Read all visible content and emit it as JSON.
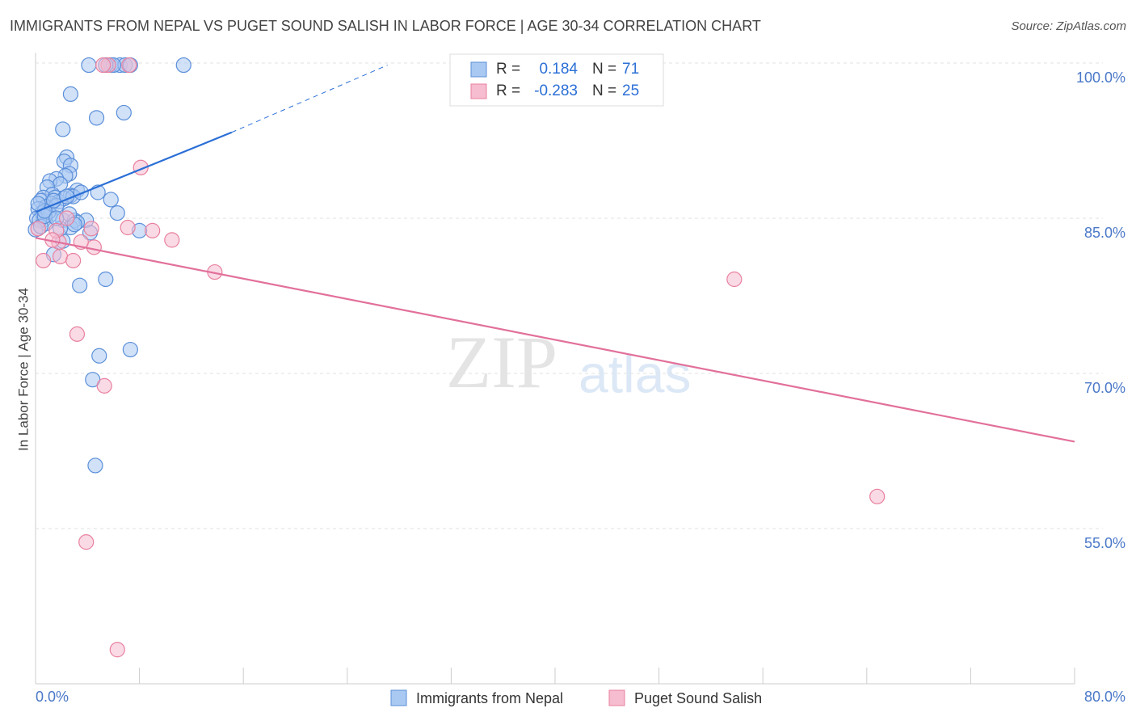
{
  "chart_data": {
    "type": "scatter",
    "title": "IMMIGRANTS FROM NEPAL VS PUGET SOUND SALISH IN LABOR FORCE | AGE 30-34 CORRELATION CHART",
    "source": "Source: ZipAtlas.com",
    "y_label": "In Labor Force | Age 30-34",
    "watermark": [
      "ZIP",
      "atlas"
    ],
    "r_label": "R =",
    "n_label": "N =",
    "xlim": [
      0,
      80
    ],
    "ylim": [
      40,
      101
    ],
    "xticks": [
      {
        "value": 0,
        "label": "0.0%"
      },
      {
        "value": 8,
        "label": null
      },
      {
        "value": 16,
        "label": null
      },
      {
        "value": 24,
        "label": null
      },
      {
        "value": 32,
        "label": null
      },
      {
        "value": 40,
        "label": null
      },
      {
        "value": 48,
        "label": null
      },
      {
        "value": 56,
        "label": null
      },
      {
        "value": 64,
        "label": null
      },
      {
        "value": 72,
        "label": null
      },
      {
        "value": 80,
        "label": "80.0%"
      }
    ],
    "yticks": [
      {
        "value": 55,
        "label": "55.0%"
      },
      {
        "value": 70,
        "label": "70.0%"
      },
      {
        "value": 85,
        "label": "85.0%"
      },
      {
        "value": 100,
        "label": "100.0%"
      }
    ],
    "grid": true,
    "series": [
      {
        "name": "Immigrants from Nepal",
        "color": "#5b8fd9",
        "fill": "#a9c9f2",
        "line_color": "#2b6fd6",
        "r": 0.184,
        "n": 71,
        "x": [
          4.1,
          5.8,
          6.5,
          6.9,
          7.3,
          11.4,
          2.7,
          4.7,
          6.8,
          2.1,
          2.4,
          2.2,
          2.7,
          2.6,
          2.3,
          1.6,
          1.1,
          1.9,
          0.9,
          1.3,
          3.2,
          2.7,
          4.8,
          5.8,
          0.6,
          0.4,
          1.5,
          1.8,
          2.2,
          2.9,
          1.2,
          0.8,
          0.2,
          0.5,
          1.1,
          0.1,
          0.6,
          0.8,
          0.3,
          2.1,
          3.0,
          3.9,
          2.7,
          6.3,
          8.0,
          4.2,
          2.1,
          1.4,
          3.4,
          5.4,
          4.9,
          7.3,
          4.4,
          4.6,
          1.0,
          1.6,
          0.0,
          0.4,
          1.9,
          3.2,
          0.7,
          1.4,
          2.4,
          3.5,
          6.0,
          5.4,
          2.6,
          3.0,
          0.7,
          0.2,
          1.6
        ],
        "values": [
          99.8,
          99.8,
          99.8,
          99.8,
          99.8,
          99.8,
          97.0,
          94.7,
          95.2,
          93.6,
          90.9,
          90.5,
          90.1,
          89.3,
          89.1,
          88.8,
          88.6,
          88.3,
          88.0,
          87.3,
          87.7,
          87.2,
          87.5,
          86.8,
          87.0,
          86.7,
          87.0,
          86.6,
          86.9,
          87.1,
          86.4,
          86.1,
          85.9,
          85.5,
          85.3,
          85.0,
          84.8,
          84.5,
          84.8,
          84.8,
          84.8,
          84.8,
          84.1,
          85.5,
          83.8,
          83.6,
          82.8,
          81.5,
          78.5,
          79.1,
          71.7,
          72.3,
          69.4,
          61.1,
          85.6,
          86.2,
          83.9,
          84.2,
          84.0,
          84.6,
          85.2,
          86.7,
          87.1,
          87.5,
          99.8,
          99.8,
          85.4,
          84.4,
          85.7,
          86.4,
          85.0
        ],
        "trend": {
          "x": [
            0,
            15.1,
            27.1
          ],
          "y": [
            85.6,
            93.3,
            99.8
          ]
        },
        "trend_style": [
          "solid",
          "dashed"
        ]
      },
      {
        "name": "Puget Sound Salish",
        "color": "#e8819f",
        "fill": "#f6bccf",
        "line_color": "#e2709a",
        "r": -0.283,
        "n": 25,
        "x": [
          5.6,
          5.2,
          7.2,
          8.1,
          7.1,
          9.0,
          10.5,
          13.8,
          4.5,
          1.8,
          1.9,
          2.9,
          0.6,
          3.2,
          5.3,
          3.9,
          6.3,
          53.8,
          64.8,
          2.4,
          0.2,
          1.6,
          4.3,
          1.3,
          3.5
        ],
        "values": [
          99.8,
          99.8,
          99.8,
          89.9,
          84.1,
          83.8,
          82.9,
          79.8,
          82.2,
          82.7,
          81.3,
          80.9,
          80.9,
          73.8,
          68.8,
          53.7,
          43.3,
          79.1,
          58.1,
          85.0,
          84.0,
          83.8,
          84.0,
          82.9,
          82.7
        ],
        "trend": {
          "x": [
            0,
            80
          ],
          "y": [
            83.1,
            63.4
          ]
        },
        "trend_style": [
          "solid"
        ]
      }
    ]
  }
}
